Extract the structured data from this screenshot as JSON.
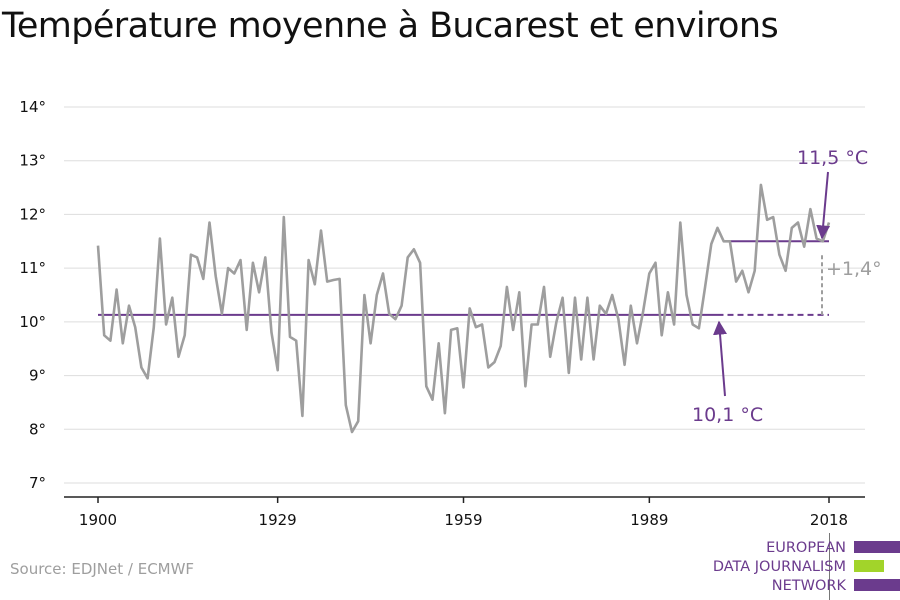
{
  "title": "Température moyenne à Bucarest et environs",
  "source": "Source: EDJNet / ECMWF",
  "logo": {
    "lines": [
      "EUROPEAN",
      "DATA JOURNALISM",
      "NETWORK"
    ],
    "colors": {
      "purple": "#6b3b8d",
      "green": "#a2d42a"
    }
  },
  "colors": {
    "series": "#9e9e9e",
    "reference": "#6b3b8d",
    "grid": "#dddddd",
    "axis": "#222222",
    "diff": "#9e9e9e"
  },
  "chart_data": {
    "type": "line",
    "title": "Température moyenne à Bucarest et environs",
    "xlabel": "",
    "ylabel": "",
    "x_ticks": [
      1900,
      1929,
      1959,
      1989,
      2018
    ],
    "y_ticks": [
      7,
      8,
      9,
      10,
      11,
      12,
      13,
      14
    ],
    "y_tick_labels": [
      "7°",
      "8°",
      "9°",
      "10°",
      "11°",
      "12°",
      "13°",
      "14°"
    ],
    "xlim": [
      1900,
      2018
    ],
    "ylim": [
      7,
      14
    ],
    "grid": "horizontal",
    "series": [
      {
        "x": [
          1900,
          1901,
          1902,
          1903,
          1904,
          1905,
          1906,
          1907,
          1908,
          1909,
          1910,
          1911,
          1912,
          1913,
          1914,
          1915,
          1916,
          1917,
          1918,
          1919,
          1920,
          1921,
          1922,
          1923,
          1924,
          1925,
          1926,
          1927,
          1928,
          1929,
          1930,
          1931,
          1932,
          1933,
          1934,
          1935,
          1936,
          1937,
          1938,
          1939,
          1940,
          1941,
          1942,
          1943,
          1944,
          1945,
          1946,
          1947,
          1948,
          1949,
          1950,
          1951,
          1952,
          1953,
          1954,
          1955,
          1956,
          1957,
          1958,
          1959,
          1960,
          1961,
          1962,
          1963,
          1964,
          1965,
          1966,
          1967,
          1968,
          1969,
          1970,
          1971,
          1972,
          1973,
          1974,
          1975,
          1976,
          1977,
          1978,
          1979,
          1980,
          1981,
          1982,
          1983,
          1984,
          1985,
          1986,
          1987,
          1988,
          1989,
          1990,
          1991,
          1992,
          1993,
          1994,
          1995,
          1996,
          1997,
          1998,
          1999,
          2000,
          2001,
          2002,
          2003,
          2004,
          2005,
          2006,
          2007,
          2008,
          2009,
          2010,
          2011,
          2012,
          2013,
          2014,
          2015,
          2016,
          2017,
          2018
        ],
        "y": [
          11.42,
          9.75,
          9.65,
          10.6,
          9.6,
          10.3,
          9.9,
          9.15,
          8.95,
          9.9,
          11.55,
          9.95,
          10.45,
          9.35,
          9.75,
          11.25,
          11.2,
          10.8,
          11.85,
          10.85,
          10.15,
          11.0,
          10.9,
          11.15,
          9.85,
          11.1,
          10.55,
          11.2,
          9.8,
          9.1,
          11.95,
          9.72,
          9.65,
          8.25,
          11.15,
          10.7,
          11.7,
          10.75,
          10.78,
          10.8,
          8.45,
          7.95,
          8.15,
          10.5,
          9.6,
          10.5,
          10.9,
          10.15,
          10.05,
          10.3,
          11.2,
          11.35,
          11.1,
          8.8,
          8.55,
          9.6,
          8.3,
          9.85,
          9.88,
          8.78,
          10.25,
          9.9,
          9.95,
          9.15,
          9.25,
          9.55,
          10.65,
          9.85,
          10.55,
          8.8,
          9.95,
          9.95,
          10.65,
          9.35,
          10.0,
          10.45,
          9.05,
          10.45,
          9.3,
          10.45,
          9.3,
          10.3,
          10.15,
          10.5,
          10.05,
          9.2,
          10.3,
          9.6,
          10.2,
          10.9,
          11.1,
          9.75,
          10.55,
          9.95,
          11.85,
          10.5,
          9.95,
          9.88,
          10.65,
          11.45,
          11.75,
          11.5,
          11.5,
          10.75,
          10.95,
          10.55,
          10.95,
          12.55,
          11.9,
          11.95,
          11.25,
          10.95,
          11.75,
          11.85,
          11.4,
          12.1,
          11.55,
          11.5,
          11.85
        ]
      }
    ],
    "reference_lines": [
      {
        "label": "10,1 °C",
        "value": 10.13,
        "x_start": 1900,
        "x_end": 2000,
        "dashed_to": 2018
      },
      {
        "label": "11,5 °C",
        "value": 11.5,
        "x_start": 2001,
        "x_end": 2018
      }
    ],
    "difference_label": "+1,4°"
  }
}
